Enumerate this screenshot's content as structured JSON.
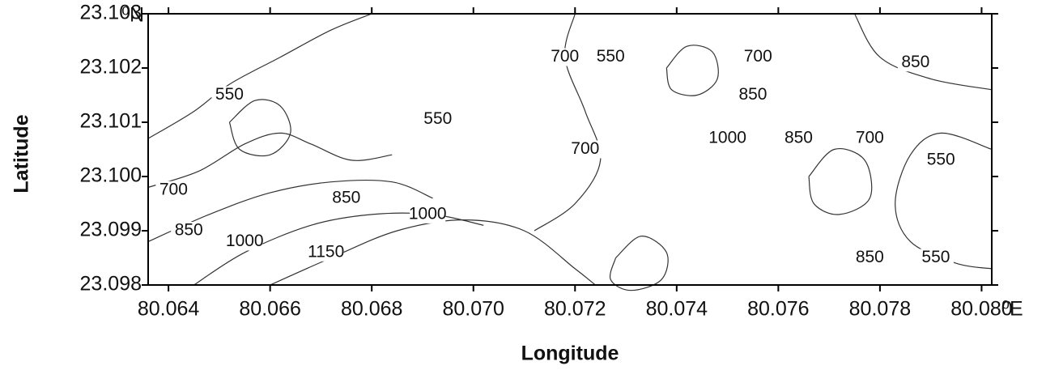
{
  "chart_data": {
    "type": "contour",
    "x_label": "Longitude",
    "y_label": "Latitude",
    "x_unit": "⁰E",
    "y_unit": "⁰N",
    "xlim": [
      80.0636,
      80.0802
    ],
    "ylim": [
      23.098,
      23.103
    ],
    "xticks": [
      80.064,
      80.066,
      80.068,
      {
        "value": 80.07,
        "label": "80.070"
      },
      80.072,
      80.074,
      80.076,
      80.078,
      {
        "value": 80.08,
        "label": "80.080"
      }
    ],
    "yticks": [
      23.098,
      23.099,
      {
        "value": 23.1,
        "label": "23.100"
      },
      23.101,
      23.102,
      23.103
    ],
    "color": "#333333",
    "contours": [
      {
        "level": 550,
        "x": [
          80.0636,
          80.0645,
          80.0652,
          80.0662,
          80.0672,
          80.068
        ],
        "y": [
          23.1007,
          23.1012,
          23.1017,
          23.1022,
          23.1027,
          23.103
        ]
      },
      {
        "level": 700,
        "x": [
          80.0636,
          80.0646,
          80.0655,
          80.0662,
          80.0668,
          80.0676,
          80.0684
        ],
        "y": [
          23.0998,
          23.1001,
          23.1006,
          23.1008,
          23.1006,
          23.1003,
          23.1004
        ]
      },
      {
        "level": 850,
        "x": [
          80.0636,
          80.0648,
          80.066,
          80.0672,
          80.0684,
          80.0692
        ],
        "y": [
          23.0988,
          23.0993,
          23.0997,
          23.0999,
          23.0999,
          23.0996
        ]
      },
      {
        "level": 1000,
        "x": [
          80.0645,
          80.0655,
          80.0668,
          80.068,
          80.0692,
          80.0702
        ],
        "y": [
          23.098,
          23.0986,
          23.0991,
          23.0993,
          23.0993,
          23.0991
        ]
      },
      {
        "level": 1150,
        "x": [
          80.066,
          80.0672,
          80.0685,
          80.0698,
          80.071,
          80.072,
          80.0724
        ],
        "y": [
          23.098,
          23.0985,
          23.099,
          23.0992,
          23.099,
          23.0983,
          23.098
        ]
      },
      {
        "level": 700,
        "x": [
          80.072,
          80.0718,
          80.0722,
          80.0725,
          80.072,
          80.0712
        ],
        "y": [
          23.103,
          23.1022,
          23.1012,
          23.1003,
          23.0995,
          23.099
        ]
      },
      {
        "level": 550,
        "x": [
          80.0802,
          80.0792,
          80.0786,
          80.0783,
          80.0786,
          80.0795,
          80.0802
        ],
        "y": [
          23.1005,
          23.1008,
          23.1004,
          23.0995,
          23.0988,
          23.0984,
          23.0983
        ]
      },
      {
        "level": 850,
        "x": [
          80.0775,
          80.078,
          80.079,
          80.0802
        ],
        "y": [
          23.103,
          23.1022,
          23.1018,
          23.1016
        ]
      },
      {
        "level": 850,
        "x": [
          80.0652,
          80.0657,
          80.0662,
          80.0664,
          80.066,
          80.0654,
          80.0652
        ],
        "y": [
          23.101,
          23.1014,
          23.1013,
          23.1008,
          23.1004,
          23.1005,
          23.101
        ]
      },
      {
        "level": 1000,
        "x": [
          80.0738,
          80.0742,
          80.0747,
          80.0748,
          80.0744,
          80.0739,
          80.0738
        ],
        "y": [
          23.102,
          23.1024,
          23.1023,
          23.1018,
          23.1015,
          23.1016,
          23.102
        ]
      },
      {
        "level": 850,
        "x": [
          80.0766,
          80.0771,
          80.0777,
          80.0778,
          80.0772,
          80.0767,
          80.0766
        ],
        "y": [
          23.1,
          23.1005,
          23.1003,
          23.0996,
          23.0993,
          23.0995,
          23.1
        ]
      },
      {
        "level": 700,
        "x": [
          80.0728,
          80.0733,
          80.0738,
          80.0737,
          80.0731,
          80.0727,
          80.0728
        ],
        "y": [
          23.0985,
          23.0989,
          23.0986,
          23.0981,
          23.0979,
          23.0981,
          23.0985
        ]
      }
    ],
    "contour_labels": [
      {
        "level": 550,
        "x": 80.0652,
        "y": 23.1015
      },
      {
        "level": 700,
        "x": 80.0641,
        "y": 23.09975
      },
      {
        "level": 850,
        "x": 80.0644,
        "y": 23.099
      },
      {
        "level": 1000,
        "x": 80.0655,
        "y": 23.0988
      },
      {
        "level": 1150,
        "x": 80.0671,
        "y": 23.0986
      },
      {
        "level": 550,
        "x": 80.0693,
        "y": 23.10105
      },
      {
        "level": 850,
        "x": 80.0675,
        "y": 23.0996
      },
      {
        "level": 1000,
        "x": 80.0691,
        "y": 23.0993
      },
      {
        "level": 700,
        "x": 80.0718,
        "y": 23.1022
      },
      {
        "level": 550,
        "x": 80.0727,
        "y": 23.1022
      },
      {
        "level": 700,
        "x": 80.0722,
        "y": 23.1005
      },
      {
        "level": 700,
        "x": 80.0756,
        "y": 23.1022
      },
      {
        "level": 850,
        "x": 80.0755,
        "y": 23.1015
      },
      {
        "level": 1000,
        "x": 80.075,
        "y": 23.1007
      },
      {
        "level": 850,
        "x": 80.0764,
        "y": 23.1007
      },
      {
        "level": 700,
        "x": 80.0778,
        "y": 23.1007
      },
      {
        "level": 850,
        "x": 80.0787,
        "y": 23.1021
      },
      {
        "level": 550,
        "x": 80.0792,
        "y": 23.1003
      },
      {
        "level": 850,
        "x": 80.0778,
        "y": 23.0985
      },
      {
        "level": 550,
        "x": 80.0791,
        "y": 23.0985
      }
    ]
  }
}
